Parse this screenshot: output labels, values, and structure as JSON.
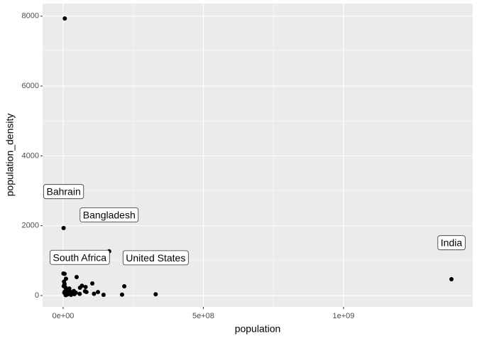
{
  "chart_data": {
    "type": "scatter",
    "x_label": "population",
    "y_label": "population_density",
    "x": [
      5800000,
      1600000,
      164000000,
      1385000000,
      330000000,
      59000000,
      218000000,
      210000000,
      144000000,
      104000000,
      124000000,
      78000000,
      80000000,
      60000000,
      48000000,
      1000000,
      5000000,
      10000000,
      3000000,
      5000000,
      2000000,
      8000000,
      12000000,
      20000000,
      25000000,
      30000000,
      35000000,
      40000000,
      15000000,
      9000000,
      4000000,
      6000000,
      18000000,
      28000000,
      45000000,
      38000000,
      67000000,
      83000000,
      110000000,
      22000000,
      13000000
    ],
    "y": [
      7935,
      1933,
      1265,
      468,
      36,
      49,
      264,
      25,
      20,
      346,
      100,
      122,
      244,
      224,
      529,
      630,
      620,
      480,
      400,
      330,
      270,
      230,
      180,
      150,
      110,
      90,
      60,
      40,
      30,
      10,
      80,
      120,
      60,
      20,
      80,
      130,
      280,
      100,
      50,
      200,
      90
    ],
    "labels": [
      null,
      "Bahrain",
      "Bangladesh",
      "India",
      "United States",
      "South Africa",
      null,
      null,
      null,
      null,
      null,
      null,
      null,
      null,
      null,
      null,
      null,
      null,
      null,
      null,
      null,
      null,
      null,
      null,
      null,
      null,
      null,
      null,
      null,
      null,
      null,
      null,
      null,
      null,
      null,
      null,
      null,
      null,
      null,
      null,
      null
    ],
    "color": "#000000",
    "xlim": [
      -73400000,
      1461000000
    ],
    "ylim": [
      -326,
      8362
    ],
    "xticks": [
      {
        "value": 0,
        "label": "0e+00"
      },
      {
        "value": 500000000,
        "label": "5e+08"
      },
      {
        "value": 1000000000,
        "label": "1e+09"
      }
    ],
    "yticks": [
      0,
      2000,
      4000,
      6000,
      8000
    ],
    "grid": true,
    "panel_color": "#ebebeb"
  }
}
